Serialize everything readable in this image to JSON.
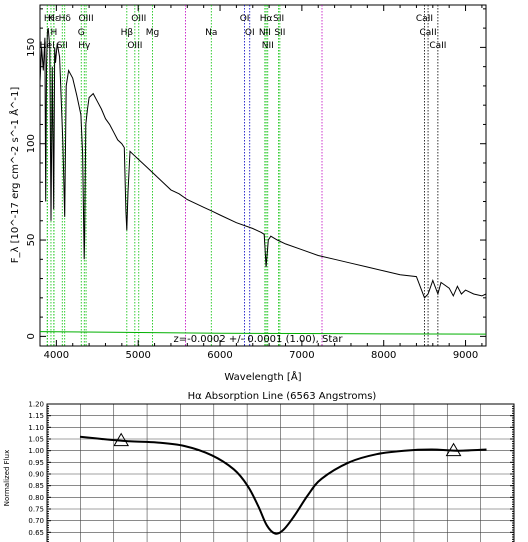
{
  "chart_data": [
    {
      "type": "line",
      "xlabel": "Wavelength [Å]",
      "ylabel": "F_λ [10^-17 erg cm^-2 s^-1 Å^-1]",
      "xlim": [
        3800,
        9250
      ],
      "ylim": [
        -5,
        172
      ],
      "xticks": [
        4000,
        5000,
        6000,
        7000,
        8000,
        9000
      ],
      "yticks": [
        0,
        50,
        100,
        150
      ],
      "annotation": "z=-0.0002 +/- 0.0001 (1.00), Star",
      "spectrum": {
        "x": [
          3800,
          3820,
          3840,
          3860,
          3870,
          3880,
          3890,
          3900,
          3920,
          3935,
          3950,
          3968,
          3980,
          3990,
          4010,
          4040,
          4080,
          4102,
          4120,
          4150,
          4200,
          4250,
          4300,
          4320,
          4340,
          4345,
          4360,
          4380,
          4400,
          4450,
          4500,
          4550,
          4600,
          4650,
          4700,
          4750,
          4800,
          4830,
          4850,
          4861,
          4875,
          4900,
          4950,
          5000,
          5100,
          5200,
          5300,
          5400,
          5500,
          5600,
          5700,
          5800,
          5900,
          6000,
          6200,
          6400,
          6500,
          6540,
          6563,
          6590,
          6620,
          6700,
          6800,
          7000,
          7200,
          7400,
          7600,
          7800,
          8000,
          8200,
          8400,
          8498,
          8542,
          8600,
          8662,
          8700,
          8800,
          8850,
          8900,
          8950,
          9000,
          9100,
          9200,
          9250
        ],
        "y": [
          132,
          150,
          138,
          155,
          70,
          140,
          158,
          160,
          150,
          60,
          140,
          66,
          150,
          142,
          152,
          145,
          100,
          62,
          130,
          138,
          134,
          125,
          115,
          95,
          40,
          50,
          110,
          118,
          124,
          126,
          122,
          118,
          113,
          110,
          106,
          102,
          100,
          98,
          65,
          55,
          75,
          96,
          94,
          92,
          88,
          84,
          80,
          76,
          74,
          71,
          69,
          67,
          65,
          63,
          59,
          56,
          54,
          53,
          36,
          50,
          52,
          50,
          48,
          45,
          42,
          40,
          38,
          36,
          34,
          32,
          31,
          20,
          22,
          29,
          22,
          28,
          25,
          21,
          26,
          22,
          24,
          22,
          21,
          22
        ]
      },
      "error": {
        "x": [
          3800,
          5000,
          6000,
          7000,
          8000,
          9250
        ],
        "y": [
          2.5,
          2.0,
          1.6,
          1.5,
          1.3,
          1.2
        ]
      },
      "lines": [
        {
          "wave": 3934,
          "label": "K",
          "row": 1,
          "color": "#00c000"
        },
        {
          "wave": 3969,
          "label": "H",
          "row": 2,
          "color": "#00c000"
        },
        {
          "wave": 3970,
          "label": "Hε",
          "row": 1,
          "color": "#00c000"
        },
        {
          "wave": 3889,
          "label": "H",
          "row": 1,
          "color": "#00c000"
        },
        {
          "wave": 3889,
          "label": "HeI",
          "row": 3,
          "color": "#00c000"
        },
        {
          "wave": 4072,
          "label": "SII",
          "row": 3,
          "color": "#00c000"
        },
        {
          "wave": 4102,
          "label": "Hδ",
          "row": 1,
          "color": "#00c000"
        },
        {
          "wave": 4304,
          "label": "G",
          "row": 2,
          "color": "#00c000"
        },
        {
          "wave": 4341,
          "label": "Hγ",
          "row": 3,
          "color": "#00c000"
        },
        {
          "wave": 4363,
          "label": "OIII",
          "row": 1,
          "color": "#00c000"
        },
        {
          "wave": 4861,
          "label": "Hβ",
          "row": 2,
          "color": "#00c000"
        },
        {
          "wave": 4959,
          "label": "OIII",
          "row": 3,
          "color": "#00c000"
        },
        {
          "wave": 5007,
          "label": "OIII",
          "row": 1,
          "color": "#00c000"
        },
        {
          "wave": 5175,
          "label": "Mg",
          "row": 2,
          "color": "#00c000"
        },
        {
          "wave": 5577,
          "label": "",
          "row": 0,
          "color": "#c000c0"
        },
        {
          "wave": 5893,
          "label": "Na",
          "row": 2,
          "color": "#00c000"
        },
        {
          "wave": 6300,
          "label": "OI",
          "row": 1,
          "color": "#0000c0"
        },
        {
          "wave": 6363,
          "label": "OI",
          "row": 2,
          "color": "#0000c0"
        },
        {
          "wave": 6548,
          "label": "NII",
          "row": 2,
          "color": "#00c000"
        },
        {
          "wave": 6563,
          "label": "Hα",
          "row": 1,
          "color": "#00c000"
        },
        {
          "wave": 6583,
          "label": "NII",
          "row": 3,
          "color": "#00c000"
        },
        {
          "wave": 6716,
          "label": "SII",
          "row": 1,
          "color": "#00c000"
        },
        {
          "wave": 6731,
          "label": "SII",
          "row": 2,
          "color": "#00c000"
        },
        {
          "wave": 7246,
          "label": "",
          "row": 0,
          "color": "#c000c0"
        },
        {
          "wave": 8498,
          "label": "CaII",
          "row": 1,
          "color": "#000000"
        },
        {
          "wave": 8542,
          "label": "CaII",
          "row": 2,
          "color": "#000000"
        },
        {
          "wave": 8662,
          "label": "CaII",
          "row": 3,
          "color": "#000000"
        }
      ]
    },
    {
      "type": "line",
      "title": "Hα Absorption Line (6563 Angstroms)",
      "ylabel": "Normalized Flux",
      "ylim": [
        0.6,
        1.2
      ],
      "yticks": [
        0.65,
        0.7,
        0.75,
        0.8,
        0.85,
        0.9,
        0.95,
        1.0,
        1.05,
        1.1,
        1.15,
        1.2
      ],
      "xlim": [
        6480,
        6650
      ],
      "x": [
        6492,
        6500,
        6510,
        6520,
        6530,
        6540,
        6548,
        6553,
        6557,
        6560,
        6563,
        6566,
        6570,
        6575,
        6580,
        6590,
        6600,
        6610,
        6620,
        6630,
        6640
      ],
      "y": [
        1.06,
        1.05,
        1.04,
        1.035,
        1.02,
        0.98,
        0.92,
        0.85,
        0.76,
        0.68,
        0.645,
        0.66,
        0.72,
        0.81,
        0.88,
        0.95,
        0.985,
        1.0,
        1.005,
        1.0,
        1.005
      ],
      "markers": [
        {
          "x": 6507,
          "y": 1.043
        },
        {
          "x": 6628,
          "y": 1.0
        }
      ],
      "grid": true
    }
  ]
}
